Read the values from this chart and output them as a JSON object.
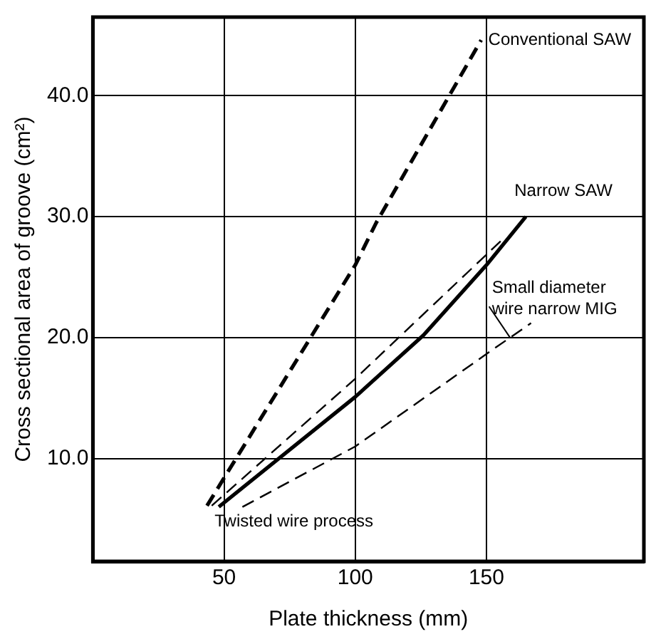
{
  "chart_data": {
    "type": "line",
    "xlabel": "Plate thickness (mm)",
    "ylabel": "Cross sectional area of groove (cm²)",
    "xlim": [
      0,
      210
    ],
    "xticks": [
      50,
      100,
      150
    ],
    "ylim": [
      1.5,
      46.5
    ],
    "yticks": [
      {
        "value": 10,
        "label": "10.0"
      },
      {
        "value": 20,
        "label": "20.0"
      },
      {
        "value": 30,
        "label": "30.0"
      },
      {
        "value": 40,
        "label": "40.0"
      }
    ],
    "grid": true,
    "legend": false,
    "marker": "none",
    "series": [
      {
        "name": "Conventional SAW",
        "color": "#000000",
        "line_style": "dashed",
        "x": [
          43.5,
          100,
          108,
          148
        ],
        "values": [
          6.1,
          26.0,
          29.5,
          44.6
        ]
      },
      {
        "name": "Narrow SAW",
        "color": "#000000",
        "line_style": "solid",
        "x": [
          48,
          100,
          126,
          150,
          165
        ],
        "values": [
          6.0,
          15.1,
          20.2,
          26.0,
          30.0
        ]
      },
      {
        "name": "Twisted wire process",
        "color": "#000000",
        "line_style": "dashed",
        "x": [
          45.3,
          100,
          156
        ],
        "values": [
          6.1,
          16.6,
          28.1
        ]
      },
      {
        "name": "Small diameter wire narrow MIG",
        "color": "#000000",
        "line_style": "dashed",
        "x": [
          57,
          100,
          151,
          167
        ],
        "values": [
          6.0,
          11.0,
          18.8,
          21.2
        ]
      }
    ]
  }
}
